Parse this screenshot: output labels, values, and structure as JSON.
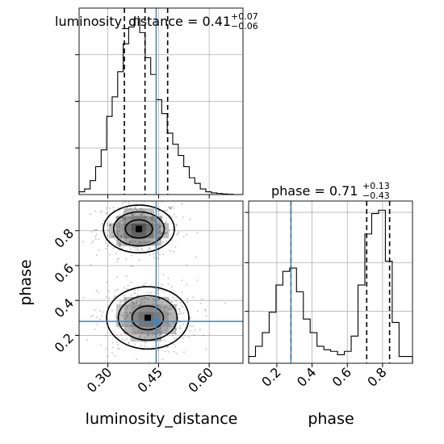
{
  "chart_data": {
    "type": "corner",
    "parameters": [
      "luminosity_distance",
      "phase"
    ],
    "titles": {
      "luminosity_distance": {
        "label": "luminosity_distance = 0.41",
        "plus": "+0.07",
        "minus": "−0.06"
      },
      "phase": {
        "label": "phase = 0.71",
        "plus": "+0.13",
        "minus": "−0.43"
      }
    },
    "axis_labels": {
      "x_left": "luminosity_distance",
      "x_right": "phase",
      "y_bottom_left": "phase"
    },
    "luminosity_distance": {
      "range": [
        0.215,
        0.7
      ],
      "ticks": [
        0.3,
        0.45,
        0.6
      ],
      "tick_labels": [
        "0.30",
        "0.45",
        "0.60"
      ],
      "truth": 0.443,
      "quantiles": [
        0.349,
        0.41,
        0.477
      ],
      "histogram": {
        "edges": [
          0.215,
          0.2313,
          0.2476,
          0.2639,
          0.2802,
          0.2965,
          0.3128,
          0.3291,
          0.3454,
          0.3617,
          0.378,
          0.3943,
          0.4106,
          0.4269,
          0.4432,
          0.4595,
          0.4758,
          0.4921,
          0.5084,
          0.5247,
          0.541,
          0.5573,
          0.5736,
          0.5899,
          0.6062,
          0.6225,
          0.6388,
          0.6551,
          0.6714,
          0.7
        ],
        "counts": [
          0.5,
          1.0,
          2.5,
          5.0,
          8.0,
          14.0,
          17.5,
          22.0,
          27.0,
          30.0,
          31.5,
          29.0,
          24.5,
          21.5,
          17.0,
          14.5,
          11.0,
          9.0,
          7.0,
          5.0,
          3.0,
          2.0,
          1.0,
          0.5,
          0.3,
          0.2,
          0.1,
          0.05,
          0.0
        ]
      }
    },
    "phase": {
      "range": [
        0.04,
        0.97
      ],
      "ticks": [
        0.2,
        0.4,
        0.6,
        0.8
      ],
      "tick_labels": [
        "0.2",
        "0.4",
        "0.6",
        "0.8"
      ],
      "truth": 0.28,
      "quantiles": [
        0.28,
        0.71,
        0.84
      ],
      "histogram": {
        "edges": [
          0.04,
          0.0788,
          0.1176,
          0.1564,
          0.1952,
          0.234,
          0.2728,
          0.3116,
          0.3504,
          0.3892,
          0.428,
          0.4668,
          0.5056,
          0.5444,
          0.5832,
          0.622,
          0.6608,
          0.6996,
          0.7384,
          0.7772,
          0.816,
          0.8548,
          0.8936,
          0.9324,
          0.97
        ],
        "counts": [
          2.0,
          5.0,
          9.0,
          15.0,
          23.0,
          27.0,
          28.0,
          21.0,
          13.0,
          9.0,
          5.0,
          4.0,
          3.5,
          2.5,
          3.5,
          8.0,
          23.0,
          38.0,
          44.0,
          45.0,
          30.0,
          12.0,
          2.0,
          2.0
        ]
      }
    },
    "joint": {
      "x": "luminosity_distance",
      "y": "phase",
      "modes": [
        {
          "x": 0.392,
          "y": 0.81,
          "sx": 0.05,
          "sy": 0.065,
          "weight": 0.55
        },
        {
          "x": 0.418,
          "y": 0.3,
          "sx": 0.058,
          "sy": 0.085,
          "weight": 0.45
        }
      ],
      "truth": [
        0.443,
        0.28
      ],
      "contour_levels": [
        "39%",
        "86%",
        "99%"
      ],
      "grid": true
    },
    "truth_color": "#4682b4",
    "line_color": "#000000",
    "grid_color": "#b0b0b0"
  }
}
